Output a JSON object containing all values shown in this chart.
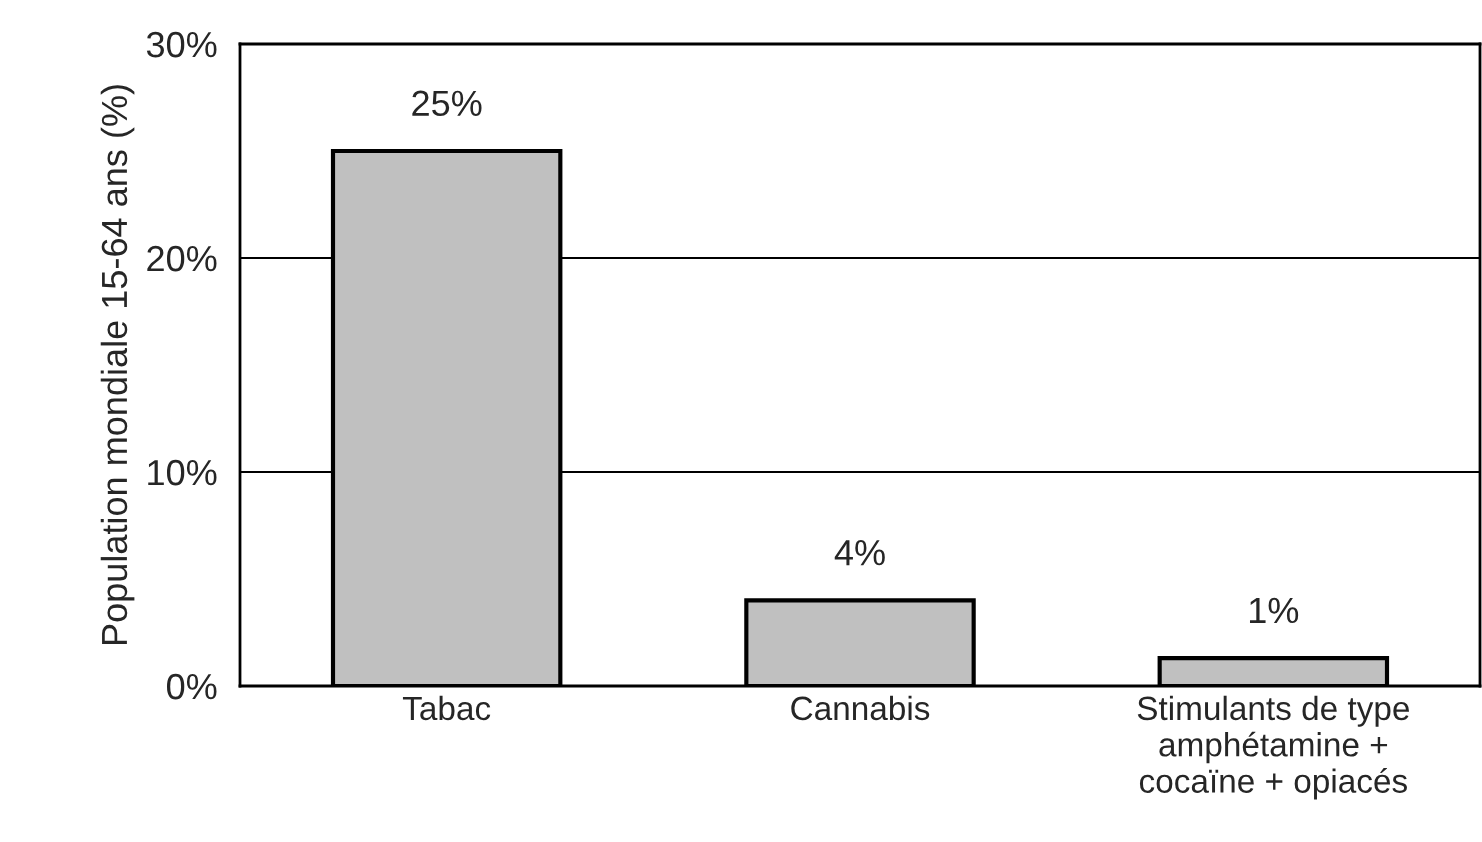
{
  "chart_data": {
    "type": "bar",
    "ylabel": "Population mondiale 15-64 ans (%)",
    "categories": [
      "Tabac",
      "Cannabis",
      "Stimulants de type\namphétamine +\ncocaïne + opiacés"
    ],
    "values": [
      25,
      4,
      1.3
    ],
    "value_labels": [
      "25%",
      "4%",
      "1%"
    ],
    "color": "#c0c0c0",
    "ylim": [
      0,
      30
    ],
    "yticks": [
      {
        "value": 0,
        "label": "0%"
      },
      {
        "value": 10,
        "label": "10%"
      },
      {
        "value": 20,
        "label": "20%"
      },
      {
        "value": 30,
        "label": "30%"
      }
    ],
    "grid": "y",
    "legend": false
  }
}
